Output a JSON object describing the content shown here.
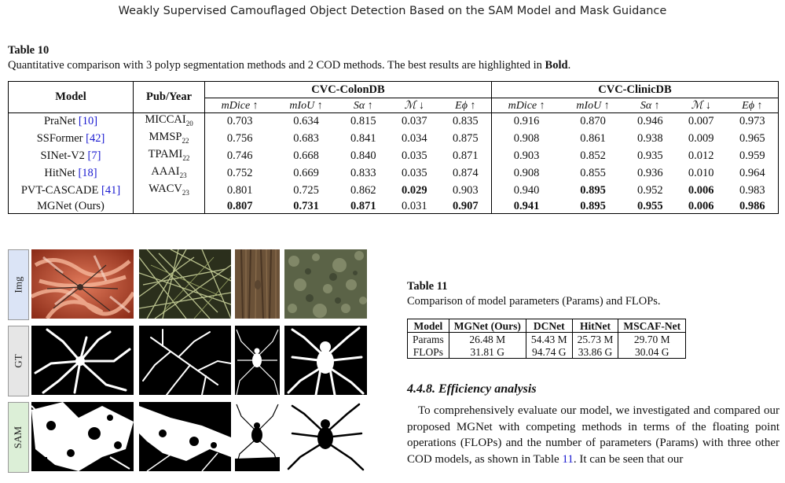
{
  "running_header": "Weakly Supervised Camouflaged Object Detection Based on the SAM Model and Mask Guidance",
  "table10": {
    "label": "Table 10",
    "caption_pre": "Quantitative comparison with 3 polyp segmentation methods and 2 COD methods. The best results are highlighted in ",
    "caption_bold": "Bold",
    "caption_post": ".",
    "col_model": "Model",
    "col_pub": "Pub/Year",
    "group1": "CVC-ColonDB",
    "group2": "CVC-ClinicDB",
    "metrics": [
      "mDice ↑",
      "mIoU ↑",
      "Sα ↑",
      "ℳ ↓",
      "Eϕ ↑",
      "mDice ↑",
      "mIoU ↑",
      "Sα ↑",
      "ℳ ↓",
      "Eϕ ↑"
    ],
    "rows": [
      {
        "name": "PraNet",
        "cite": "[10]",
        "pub": "MICCAI",
        "year": "20",
        "values": [
          "0.703",
          "0.634",
          "0.815",
          "0.037",
          "0.835",
          "0.916",
          "0.870",
          "0.946",
          "0.007",
          "0.973"
        ],
        "bold": [
          false,
          false,
          false,
          false,
          false,
          false,
          false,
          false,
          false,
          false
        ]
      },
      {
        "name": "SSFormer",
        "cite": "[42]",
        "pub": "MMSP",
        "year": "22",
        "values": [
          "0.756",
          "0.683",
          "0.841",
          "0.034",
          "0.875",
          "0.908",
          "0.861",
          "0.938",
          "0.009",
          "0.965"
        ],
        "bold": [
          false,
          false,
          false,
          false,
          false,
          false,
          false,
          false,
          false,
          false
        ]
      },
      {
        "name": "SINet-V2",
        "cite": "[7]",
        "pub": "TPAMI",
        "year": "22",
        "values": [
          "0.746",
          "0.668",
          "0.840",
          "0.035",
          "0.871",
          "0.903",
          "0.852",
          "0.935",
          "0.012",
          "0.959"
        ],
        "bold": [
          false,
          false,
          false,
          false,
          false,
          false,
          false,
          false,
          false,
          false
        ]
      },
      {
        "name": "HitNet",
        "cite": "[18]",
        "pub": "AAAI",
        "year": "23",
        "values": [
          "0.752",
          "0.669",
          "0.833",
          "0.035",
          "0.874",
          "0.908",
          "0.855",
          "0.936",
          "0.010",
          "0.964"
        ],
        "bold": [
          false,
          false,
          false,
          false,
          false,
          false,
          false,
          false,
          false,
          false
        ]
      },
      {
        "name": "PVT-CASCADE",
        "cite": "[41]",
        "pub": "WACV",
        "year": "23",
        "values": [
          "0.801",
          "0.725",
          "0.862",
          "0.029",
          "0.903",
          "0.940",
          "0.895",
          "0.952",
          "0.006",
          "0.983"
        ],
        "bold": [
          false,
          false,
          false,
          true,
          false,
          false,
          true,
          false,
          true,
          false
        ]
      },
      {
        "name": "MGNet (Ours)",
        "cite": "",
        "pub": "",
        "year": "",
        "values": [
          "0.807",
          "0.731",
          "0.871",
          "0.031",
          "0.907",
          "0.941",
          "0.895",
          "0.955",
          "0.006",
          "0.986"
        ],
        "bold": [
          true,
          true,
          true,
          false,
          true,
          true,
          true,
          true,
          true,
          true
        ]
      }
    ]
  },
  "figure": {
    "row_labels": [
      "Img",
      "GT",
      "SAM"
    ]
  },
  "table11": {
    "label": "Table 11",
    "caption": "Comparison of model parameters (Params) and FLOPs.",
    "headers": [
      "Model",
      "MGNet (Ours)",
      "DCNet",
      "HitNet",
      "MSCAF-Net"
    ],
    "rows": [
      [
        "Params",
        "26.48 M",
        "54.43 M",
        "25.73 M",
        "29.70 M"
      ],
      [
        "FLOPs",
        "31.81 G",
        "94.74 G",
        "33.86 G",
        "30.04 G"
      ]
    ]
  },
  "section": {
    "title": "4.4.8. Efficiency analysis",
    "para_a": "To comprehensively evaluate our model, we investigated and compared our proposed MGNet with competing methods in terms of the floating point operations (FLOPs) and the number of parameters (Params) with three other COD models, as shown in Table ",
    "para_ref": "11",
    "para_b": ". It can be seen that our"
  }
}
